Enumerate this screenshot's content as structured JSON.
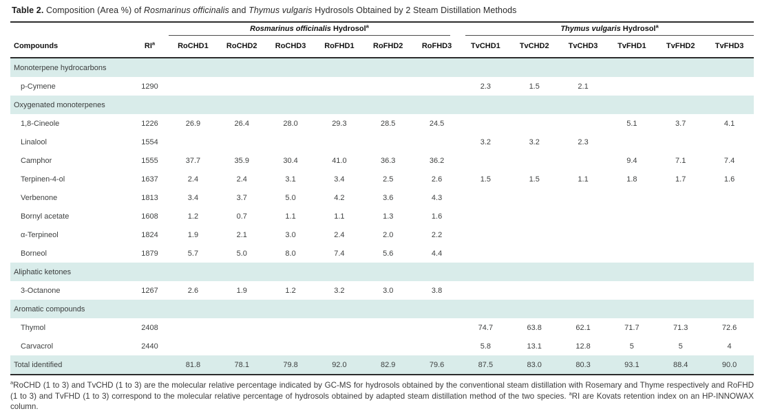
{
  "caption": {
    "label": "Table 2.",
    "pre": " Composition (Area %) of ",
    "species1": "Rosmarinus officinalis",
    "mid": " and ",
    "species2": "Thymus vulgaris",
    "post": " Hydrosols Obtained by 2 Steam Distillation Methods"
  },
  "groups": [
    {
      "italic": "Rosmarinus officinalis",
      "rest": " Hydrosol",
      "sup": "a"
    },
    {
      "italic": "Thymus vulgaris",
      "rest": " Hydrosol",
      "sup": "a"
    }
  ],
  "table": {
    "columns": [
      {
        "label": "Compounds"
      },
      {
        "label": "RI",
        "sup": "a"
      },
      {
        "label": "RoCHD1"
      },
      {
        "label": "RoCHD2"
      },
      {
        "label": "RoCHD3"
      },
      {
        "label": "RoFHD1"
      },
      {
        "label": "RoFHD2"
      },
      {
        "label": "RoFHD3"
      },
      {
        "label": "TvCHD1"
      },
      {
        "label": "TvCHD2"
      },
      {
        "label": "TvCHD3"
      },
      {
        "label": "TvFHD1"
      },
      {
        "label": "TvFHD2"
      },
      {
        "label": "TvFHD3"
      }
    ],
    "rows": [
      {
        "type": "section",
        "name": "Monoterpene hydrocarbons"
      },
      {
        "type": "compound",
        "name": "p-Cymene",
        "ri": "1290",
        "values": [
          "",
          "",
          "",
          "",
          "",
          "",
          "2.3",
          "1.5",
          "2.1",
          "",
          "",
          ""
        ]
      },
      {
        "type": "section",
        "name": "Oxygenated monoterpenes"
      },
      {
        "type": "compound",
        "name": "1,8-Cineole",
        "ri": "1226",
        "values": [
          "26.9",
          "26.4",
          "28.0",
          "29.3",
          "28.5",
          "24.5",
          "",
          "",
          "",
          "5.1",
          "3.7",
          "4.1"
        ]
      },
      {
        "type": "compound",
        "name": "Linalool",
        "ri": "1554",
        "values": [
          "",
          "",
          "",
          "",
          "",
          "",
          "3.2",
          "3.2",
          "2.3",
          "",
          "",
          ""
        ]
      },
      {
        "type": "compound",
        "name": "Camphor",
        "ri": "1555",
        "values": [
          "37.7",
          "35.9",
          "30.4",
          "41.0",
          "36.3",
          "36.2",
          "",
          "",
          "",
          "9.4",
          "7.1",
          "7.4"
        ]
      },
      {
        "type": "compound",
        "name": "Terpinen-4-ol",
        "ri": "1637",
        "values": [
          "2.4",
          "2.4",
          "3.1",
          "3.4",
          "2.5",
          "2.6",
          "1.5",
          "1.5",
          "1.1",
          "1.8",
          "1.7",
          "1.6"
        ]
      },
      {
        "type": "compound",
        "name": "Verbenone",
        "ri": "1813",
        "values": [
          "3.4",
          "3.7",
          "5.0",
          "4.2",
          "3.6",
          "4.3",
          "",
          "",
          "",
          "",
          "",
          ""
        ]
      },
      {
        "type": "compound",
        "name": "Bornyl acetate",
        "ri": "1608",
        "values": [
          "1.2",
          "0.7",
          "1.1",
          "1.1",
          "1.3",
          "1.6",
          "",
          "",
          "",
          "",
          "",
          ""
        ]
      },
      {
        "type": "compound",
        "name": "α-Terpineol",
        "ri": "1824",
        "values": [
          "1.9",
          "2.1",
          "3.0",
          "2.4",
          "2.0",
          "2.2",
          "",
          "",
          "",
          "",
          "",
          ""
        ]
      },
      {
        "type": "compound",
        "name": "Borneol",
        "ri": "1879",
        "values": [
          "5.7",
          "5.0",
          "8.0",
          "7.4",
          "5.6",
          "4.4",
          "",
          "",
          "",
          "",
          "",
          ""
        ]
      },
      {
        "type": "section",
        "name": "Aliphatic ketones"
      },
      {
        "type": "compound",
        "name": "3-Octanone",
        "ri": "1267",
        "values": [
          "2.6",
          "1.9",
          "1.2",
          "3.2",
          "3.0",
          "3.8",
          "",
          "",
          "",
          "",
          "",
          ""
        ]
      },
      {
        "type": "section",
        "name": "Aromatic compounds"
      },
      {
        "type": "compound",
        "name": "Thymol",
        "ri": "2408",
        "values": [
          "",
          "",
          "",
          "",
          "",
          "",
          "74.7",
          "63.8",
          "62.1",
          "71.7",
          "71.3",
          "72.6"
        ]
      },
      {
        "type": "compound",
        "name": "Carvacrol",
        "ri": "2440",
        "values": [
          "",
          "",
          "",
          "",
          "",
          "",
          "5.8",
          "13.1",
          "12.8",
          "5",
          "5",
          "4"
        ]
      },
      {
        "type": "total",
        "name": "Total identified",
        "ri": "",
        "values": [
          "81.8",
          "78.1",
          "79.8",
          "92.0",
          "82.9",
          "79.6",
          "87.5",
          "83.0",
          "80.3",
          "93.1",
          "88.4",
          "90.0"
        ]
      }
    ]
  },
  "footnote": {
    "sup1": "a",
    "part1": "RoCHD (1 to 3) and TvCHD (1 to 3) are the molecular relative percentage indicated by GC-MS for hydrosols obtained by the conventional steam distillation with Rosemary and Thyme respectively and RoFHD (1 to 3) and TvFHD (1 to 3) correspond to the molecular relative percentage of hydrosols obtained by adapted steam distillation method of the two species. ",
    "sup2": "a",
    "part2": "RI are Kovats retention index on an HP-INNOWAX column."
  },
  "colors": {
    "band": "#d9ecea",
    "rule_dark": "#2b2b2b",
    "rule_thin": "#4a4a4a"
  }
}
